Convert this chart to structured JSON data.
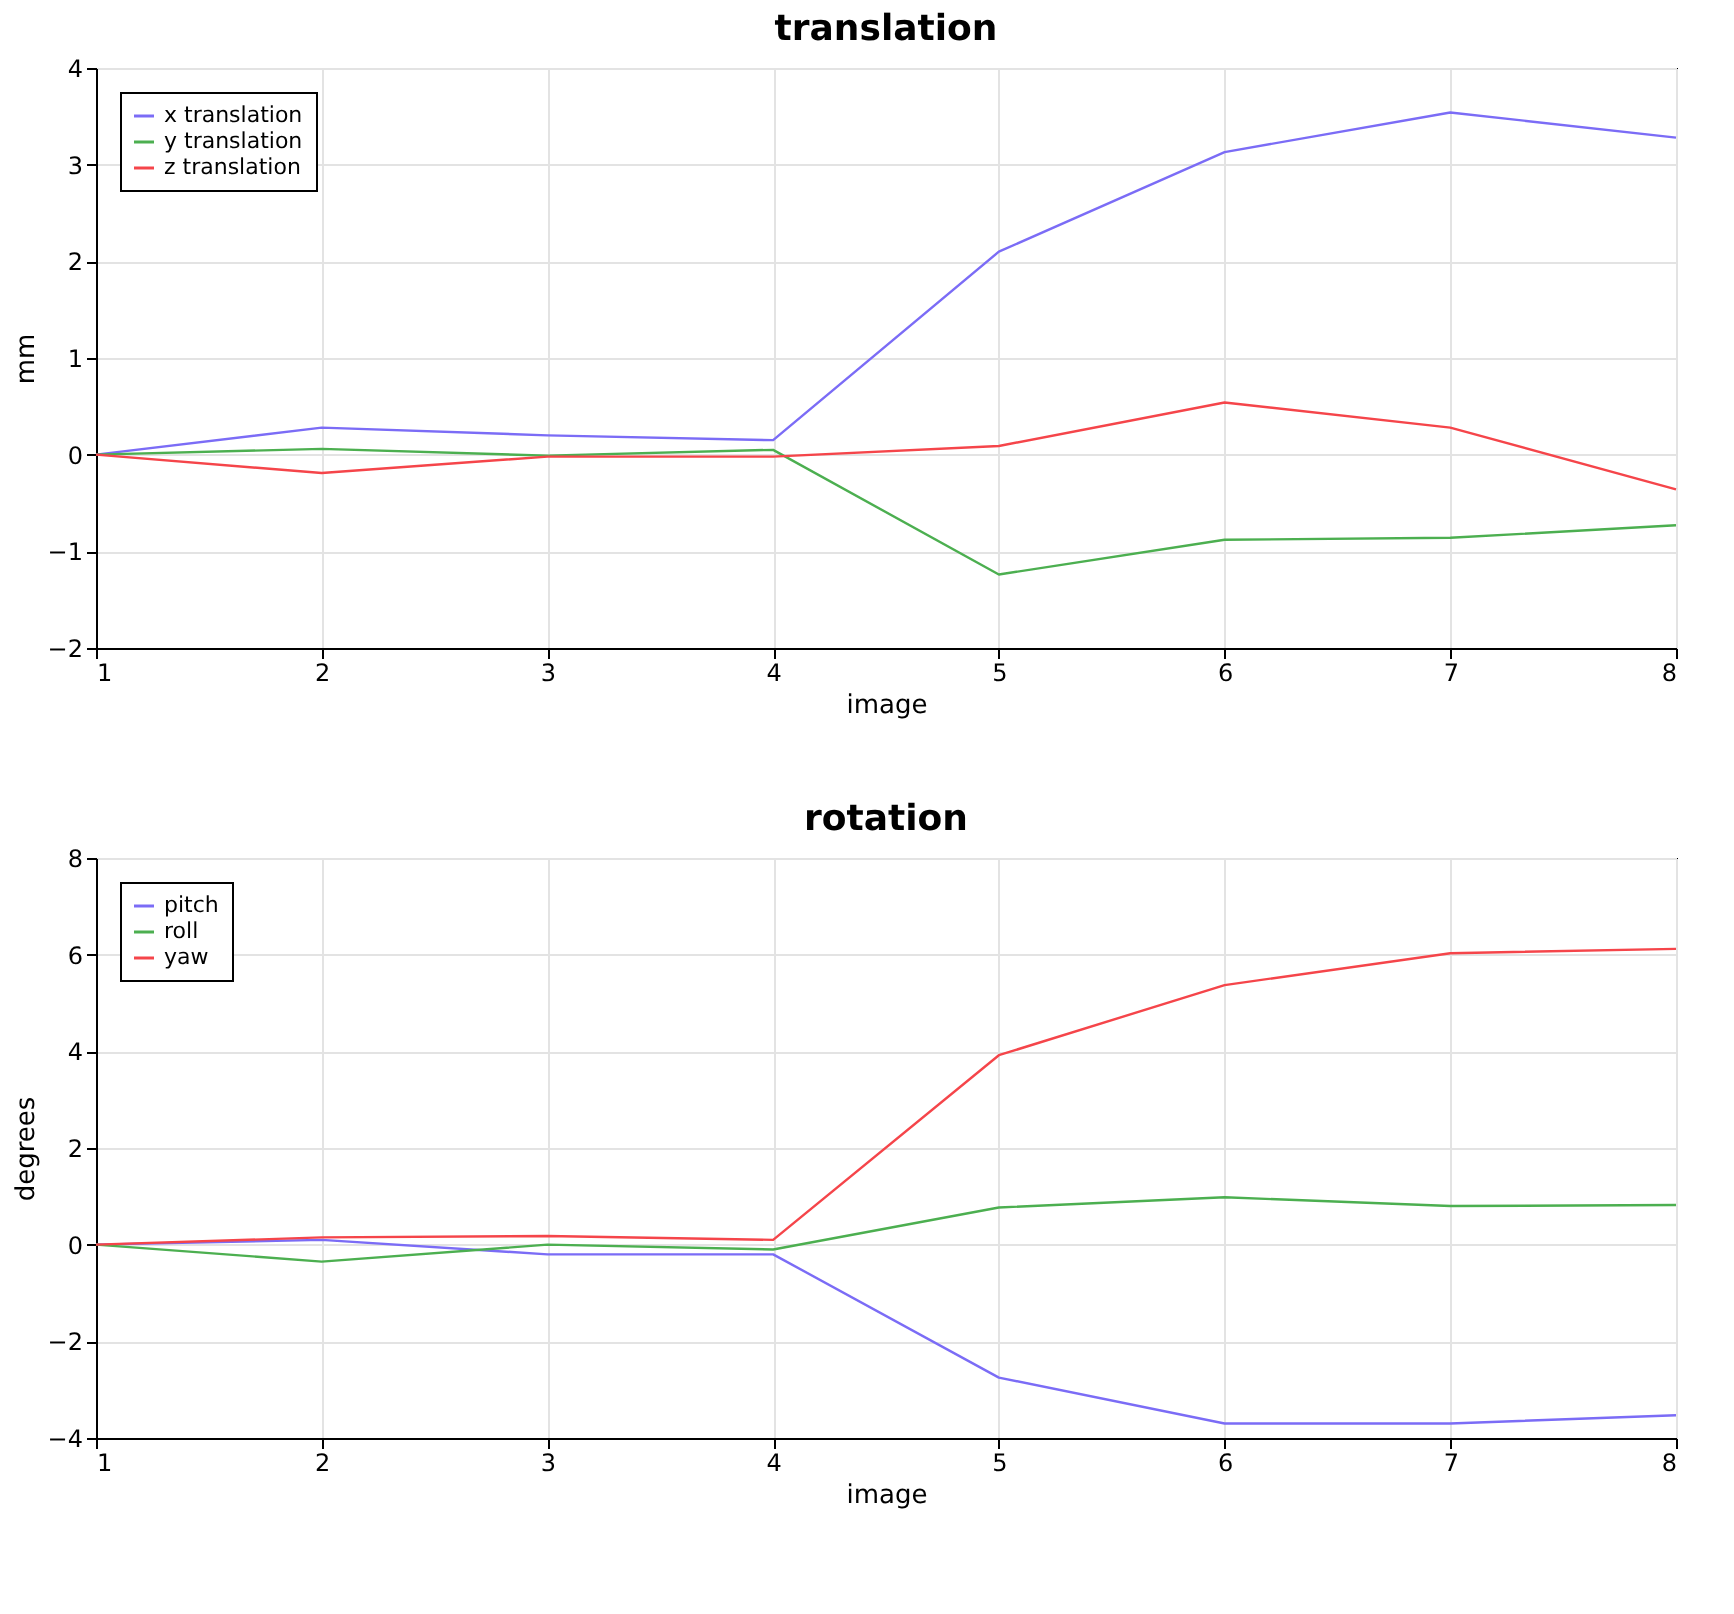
{
  "chart_data": [
    {
      "type": "line",
      "title": "translation",
      "xlabel": "image",
      "ylabel": "mm",
      "x": [
        1,
        2,
        3,
        4,
        5,
        6,
        7,
        8
      ],
      "xlim": [
        1,
        8
      ],
      "xticks": [
        1,
        2,
        3,
        4,
        5,
        6,
        7,
        8
      ],
      "ylim": [
        -2,
        4
      ],
      "yticks": [
        -2,
        -1,
        0,
        1,
        2,
        3,
        4
      ],
      "grid": true,
      "legend": "top left",
      "series": [
        {
          "name": "x translation",
          "color": "#7b6cf6",
          "values": [
            0,
            0.28,
            0.2,
            0.15,
            2.1,
            3.13,
            3.54,
            3.28
          ]
        },
        {
          "name": "y translation",
          "color": "#4caf50",
          "values": [
            0,
            0.06,
            -0.01,
            0.05,
            -1.24,
            -0.88,
            -0.86,
            -0.73
          ]
        },
        {
          "name": "z translation",
          "color": "#f5454a",
          "values": [
            0,
            -0.19,
            -0.02,
            -0.02,
            0.09,
            0.54,
            0.28,
            -0.36
          ]
        }
      ]
    },
    {
      "type": "line",
      "title": "rotation",
      "xlabel": "image",
      "ylabel": "degrees",
      "x": [
        1,
        2,
        3,
        4,
        5,
        6,
        7,
        8
      ],
      "xlim": [
        1,
        8
      ],
      "xticks": [
        1,
        2,
        3,
        4,
        5,
        6,
        7,
        8
      ],
      "ylim": [
        -4,
        8
      ],
      "yticks": [
        -4,
        -2,
        0,
        2,
        4,
        6,
        8
      ],
      "grid": true,
      "legend": "top left",
      "series": [
        {
          "name": "pitch",
          "color": "#7b6cf6",
          "values": [
            0,
            0.1,
            -0.2,
            -0.2,
            -2.75,
            -3.7,
            -3.7,
            -3.53
          ]
        },
        {
          "name": "roll",
          "color": "#4caf50",
          "values": [
            0,
            -0.35,
            0,
            -0.1,
            0.77,
            0.98,
            0.8,
            0.82
          ]
        },
        {
          "name": "yaw",
          "color": "#f5454a",
          "values": [
            0,
            0.15,
            0.18,
            0.1,
            3.92,
            5.37,
            6.03,
            6.12
          ]
        }
      ]
    }
  ]
}
